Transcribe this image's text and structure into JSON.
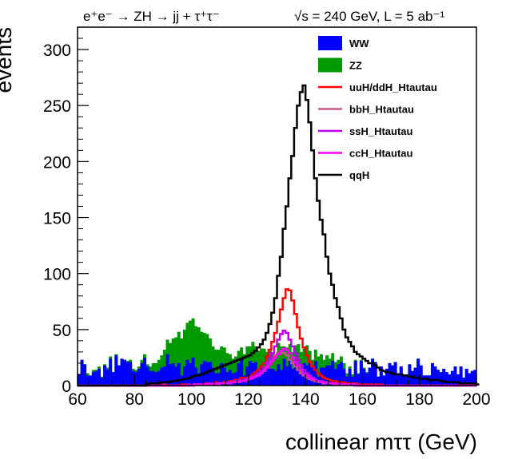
{
  "chart_data": {
    "type": "area",
    "title": "e⁺e⁻ → ZH → jj + τ⁺τ⁻",
    "subtitle": "√s = 240 GeV,   L = 5 ab⁻¹",
    "xlabel": "collinear mττ (GeV)",
    "ylabel": "events",
    "xlim": [
      60,
      200
    ],
    "ylim": [
      0,
      320
    ],
    "x_ticks": [
      "60",
      "80",
      "100",
      "120",
      "140",
      "160",
      "180",
      "200"
    ],
    "y_ticks": [
      "0",
      "50",
      "100",
      "150",
      "200",
      "250",
      "300"
    ],
    "bin_width": 1,
    "legend_position": "top-right",
    "series": [
      {
        "name": "WW",
        "style": "fill",
        "color": "#0000ff",
        "values": [
          10,
          23,
          19,
          9,
          9,
          12,
          13,
          15,
          7,
          18,
          14,
          24,
          12,
          27,
          18,
          24,
          23,
          21,
          21,
          13,
          12,
          15,
          20,
          25,
          17,
          13,
          13,
          12,
          13,
          16,
          17,
          28,
          19,
          20,
          17,
          20,
          9,
          17,
          23,
          20,
          25,
          16,
          11,
          19,
          22,
          21,
          21,
          16,
          11,
          11,
          20,
          16,
          12,
          14,
          11,
          12,
          20,
          24,
          9,
          17,
          22,
          20,
          21,
          14,
          18,
          12,
          17,
          15,
          15,
          13,
          19,
          14,
          24,
          17,
          24,
          15,
          23,
          16,
          11,
          20,
          18,
          20,
          18,
          22,
          8,
          16,
          16,
          18,
          18,
          22,
          15,
          19,
          21,
          15,
          8,
          15,
          8,
          22,
          10,
          22,
          15,
          11,
          16,
          24,
          21,
          8,
          17,
          9,
          15,
          20,
          18,
          21,
          11,
          17,
          10,
          10,
          19,
          13,
          16,
          24,
          18,
          9,
          9,
          9,
          20,
          17,
          14,
          12,
          15,
          12,
          10,
          13,
          17,
          10,
          17,
          7,
          15,
          11,
          13,
          14
        ]
      },
      {
        "name": "ZZ",
        "style": "fill",
        "color": "#009900",
        "values": [
          10,
          23,
          19,
          11,
          9,
          14,
          14,
          17,
          8,
          19,
          16,
          26,
          12,
          28,
          18,
          24,
          23,
          22,
          23,
          15,
          14,
          17,
          23,
          28,
          19,
          17,
          20,
          20,
          23,
          27,
          32,
          41,
          38,
          42,
          43,
          48,
          42,
          50,
          56,
          58,
          60,
          53,
          52,
          48,
          47,
          46,
          42,
          35,
          32,
          32,
          35,
          34,
          29,
          28,
          24,
          26,
          31,
          34,
          28,
          35,
          35,
          39,
          35,
          31,
          33,
          33,
          30,
          31,
          30,
          27,
          38,
          35,
          35,
          34,
          37,
          30,
          36,
          37,
          30,
          33,
          36,
          31,
          23,
          32,
          26,
          28,
          23,
          27,
          24,
          29,
          21,
          23,
          26,
          20,
          11,
          17,
          10,
          23,
          11,
          23,
          16,
          12,
          16,
          24,
          21,
          8,
          17,
          9,
          15,
          20,
          18,
          21,
          11,
          17,
          10,
          10,
          19,
          13,
          16,
          24,
          18,
          9,
          9,
          9,
          20,
          17,
          14,
          12,
          15,
          12,
          10,
          13,
          17,
          10,
          17,
          7,
          15,
          11,
          13,
          14
        ]
      },
      {
        "name": "uuH/ddH_Htautau",
        "style": "line",
        "color": "#ff0000",
        "values": [
          0,
          0,
          0,
          0,
          0,
          0,
          0,
          0,
          0,
          0,
          0,
          0,
          0,
          0,
          0,
          0,
          0,
          0,
          0,
          0,
          0,
          0,
          0,
          0,
          0,
          0,
          0,
          0,
          0,
          0,
          1,
          0,
          0,
          0,
          0,
          0,
          1,
          1,
          1,
          1,
          1,
          1,
          1,
          1,
          1,
          2,
          2,
          2,
          3,
          2,
          2,
          3,
          3,
          4,
          4,
          5,
          5,
          7,
          6,
          7,
          8,
          10,
          12,
          14,
          17,
          20,
          26,
          32,
          39,
          47,
          57,
          68,
          78,
          86,
          85,
          76,
          64,
          52,
          42,
          34,
          27,
          21,
          17,
          14,
          11,
          9,
          7,
          6,
          5,
          4,
          4,
          3,
          3,
          3,
          2,
          2,
          2,
          2,
          1,
          1,
          1,
          1,
          1,
          1,
          1,
          1,
          1,
          0,
          0,
          0,
          0,
          0,
          0,
          0,
          0,
          0,
          0,
          0,
          0,
          0,
          0,
          0,
          0,
          0,
          0,
          0,
          0,
          0,
          0,
          0,
          0,
          0,
          0,
          0,
          0,
          0,
          0,
          0,
          0,
          0
        ]
      },
      {
        "name": "bbH_Htautau",
        "style": "line",
        "color": "#c45a87",
        "values": [
          0,
          0,
          0,
          0,
          0,
          0,
          0,
          0,
          0,
          0,
          0,
          0,
          0,
          0,
          0,
          0,
          0,
          0,
          0,
          0,
          0,
          0,
          0,
          0,
          0,
          0,
          0,
          0,
          0,
          0,
          0,
          0,
          0,
          0,
          0,
          0,
          0,
          0,
          0,
          0,
          0,
          1,
          1,
          1,
          1,
          1,
          1,
          1,
          1,
          1,
          2,
          2,
          2,
          2,
          3,
          3,
          4,
          4,
          4,
          5,
          6,
          7,
          8,
          10,
          12,
          14,
          17,
          21,
          24,
          27,
          29,
          30,
          29,
          27,
          23,
          20,
          17,
          14,
          11,
          9,
          7,
          6,
          5,
          4,
          3,
          3,
          2,
          2,
          2,
          2,
          1,
          1,
          1,
          1,
          1,
          1,
          1,
          0,
          0,
          0,
          0,
          0,
          0,
          0,
          0,
          0,
          0,
          0,
          0,
          0,
          0,
          0,
          0,
          0,
          0,
          0,
          0,
          0,
          0,
          0,
          0,
          0,
          0,
          0,
          0,
          0,
          0,
          0,
          0,
          0,
          0,
          0,
          0,
          0,
          0,
          0,
          0,
          0,
          0,
          0
        ]
      },
      {
        "name": "ssH_Htautau",
        "style": "line",
        "color": "#bb00ee",
        "values": [
          0,
          0,
          0,
          0,
          0,
          0,
          0,
          0,
          0,
          0,
          0,
          0,
          0,
          0,
          0,
          0,
          0,
          0,
          0,
          0,
          0,
          0,
          0,
          0,
          0,
          0,
          0,
          0,
          0,
          0,
          0,
          0,
          0,
          0,
          0,
          0,
          0,
          0,
          0,
          1,
          1,
          1,
          1,
          1,
          1,
          1,
          2,
          2,
          2,
          2,
          2,
          2,
          3,
          3,
          3,
          4,
          4,
          5,
          5,
          6,
          7,
          8,
          9,
          11,
          13,
          16,
          20,
          24,
          29,
          35,
          41,
          46,
          49,
          47,
          41,
          35,
          29,
          23,
          18,
          14,
          11,
          9,
          7,
          5,
          4,
          4,
          3,
          3,
          2,
          2,
          2,
          1,
          1,
          1,
          1,
          1,
          1,
          1,
          0,
          0,
          0,
          0,
          0,
          0,
          0,
          0,
          0,
          0,
          0,
          0,
          0,
          0,
          0,
          0,
          0,
          0,
          0,
          0,
          0,
          0,
          0,
          0,
          0,
          0,
          0,
          0,
          0,
          0,
          0,
          0,
          0,
          0,
          0,
          0,
          0,
          0,
          0,
          0,
          0,
          0
        ]
      },
      {
        "name": "ccH_Htautau",
        "style": "line",
        "color": "#ff00ff",
        "values": [
          0,
          0,
          0,
          0,
          0,
          0,
          0,
          0,
          0,
          0,
          0,
          0,
          0,
          0,
          0,
          0,
          0,
          0,
          0,
          0,
          0,
          0,
          0,
          0,
          0,
          0,
          0,
          0,
          0,
          0,
          0,
          0,
          0,
          0,
          0,
          0,
          0,
          0,
          0,
          0,
          0,
          1,
          1,
          1,
          1,
          1,
          1,
          1,
          1,
          2,
          2,
          2,
          2,
          2,
          3,
          3,
          3,
          4,
          4,
          5,
          6,
          7,
          8,
          9,
          11,
          13,
          16,
          19,
          22,
          25,
          28,
          31,
          33,
          32,
          29,
          25,
          21,
          18,
          14,
          11,
          9,
          7,
          6,
          5,
          4,
          3,
          3,
          2,
          2,
          2,
          2,
          1,
          1,
          1,
          1,
          1,
          1,
          0,
          0,
          0,
          0,
          0,
          0,
          0,
          0,
          0,
          0,
          0,
          0,
          0,
          0,
          0,
          0,
          0,
          0,
          0,
          0,
          0,
          0,
          0,
          0,
          0,
          0,
          0,
          0,
          0,
          0,
          0,
          0,
          0,
          0,
          0,
          0,
          0,
          0,
          0,
          0,
          0,
          0,
          0
        ]
      },
      {
        "name": "qqH",
        "style": "line",
        "color": "#000000",
        "values": [
          0,
          0,
          0,
          0,
          0,
          0,
          0,
          0,
          0,
          0,
          0,
          0,
          0,
          0,
          0,
          0,
          0,
          0,
          0,
          0,
          0,
          0,
          0,
          0,
          1,
          2,
          2,
          2,
          2,
          3,
          3,
          3,
          3,
          4,
          4,
          5,
          5,
          6,
          6,
          7,
          8,
          9,
          9,
          10,
          11,
          12,
          13,
          14,
          15,
          16,
          17,
          18,
          19,
          20,
          21,
          22,
          23,
          24,
          25,
          26,
          27,
          29,
          31,
          34,
          37,
          41,
          47,
          55,
          65,
          78,
          98,
          115,
          140,
          160,
          185,
          205,
          230,
          250,
          262,
          268,
          255,
          235,
          210,
          185,
          165,
          148,
          135,
          115,
          100,
          90,
          78,
          70,
          60,
          50,
          43,
          39,
          35,
          30,
          28,
          26,
          24,
          22,
          20,
          20,
          18,
          16,
          14,
          13,
          12,
          12,
          11,
          10,
          10,
          10,
          9,
          9,
          8,
          8,
          7,
          7,
          6,
          6,
          6,
          5,
          5,
          5,
          5,
          4,
          4,
          3,
          3,
          3,
          3,
          3,
          2,
          2,
          2,
          2,
          2,
          2,
          1
        ]
      }
    ]
  }
}
